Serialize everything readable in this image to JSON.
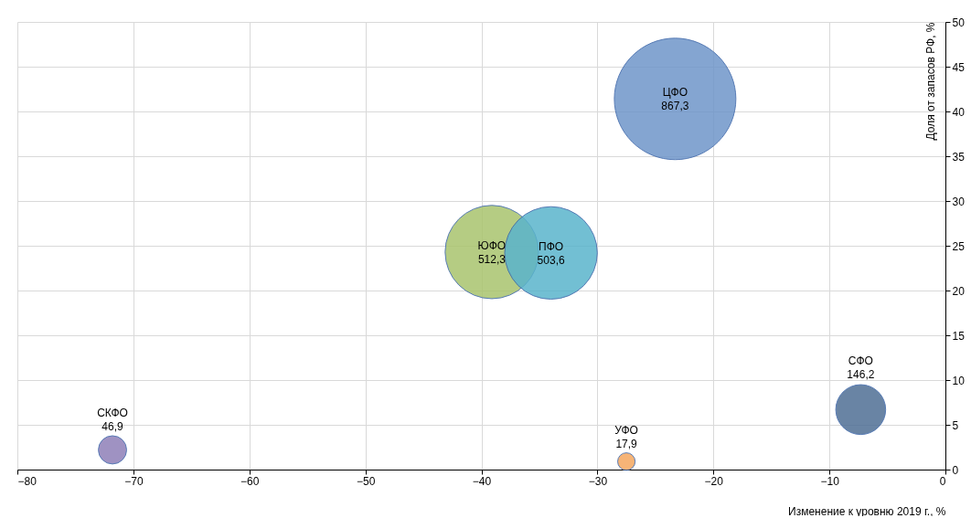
{
  "chart_data": {
    "type": "bubble",
    "xlabel": "Изменение к уровню 2019 г., %",
    "ylabel": "Доля  от запасов РФ, %",
    "xlim": [
      -80,
      0
    ],
    "xticks": [
      -80,
      -70,
      -60,
      -50,
      -40,
      -30,
      -20,
      -10,
      0
    ],
    "ylim": [
      0,
      50
    ],
    "yticks": [
      0,
      5,
      10,
      15,
      20,
      25,
      30,
      35,
      40,
      45,
      50
    ],
    "grid": true,
    "series": [
      {
        "name": "ЦФО",
        "color": "#6f96c9",
        "x": [
          -23.3
        ],
        "values": [
          41.4
        ],
        "sizes": [
          867.3
        ],
        "value_labels": [
          "867,3"
        ]
      },
      {
        "name": "ЮФО",
        "color": "#a9c46e",
        "x": [
          -39.1
        ],
        "values": [
          24.3
        ],
        "sizes": [
          512.3
        ],
        "value_labels": [
          "512,3"
        ]
      },
      {
        "name": "ПФО",
        "color": "#5ab4cc",
        "x": [
          -34.0
        ],
        "values": [
          24.2
        ],
        "sizes": [
          503.6
        ],
        "value_labels": [
          "503,6"
        ]
      },
      {
        "name": "СФО",
        "color": "#4f6f95",
        "x": [
          -7.3
        ],
        "values": [
          6.7
        ],
        "sizes": [
          146.2
        ],
        "value_labels": [
          "146,2"
        ]
      },
      {
        "name": "СКФО",
        "color": "#8f7fb8",
        "x": [
          -71.8
        ],
        "values": [
          2.2
        ],
        "sizes": [
          46.9
        ],
        "value_labels": [
          "46,9"
        ]
      },
      {
        "name": "УФО",
        "color": "#f5a860",
        "x": [
          -27.5
        ],
        "values": [
          0.9
        ],
        "sizes": [
          17.9
        ],
        "value_labels": [
          "17,9"
        ]
      }
    ]
  }
}
